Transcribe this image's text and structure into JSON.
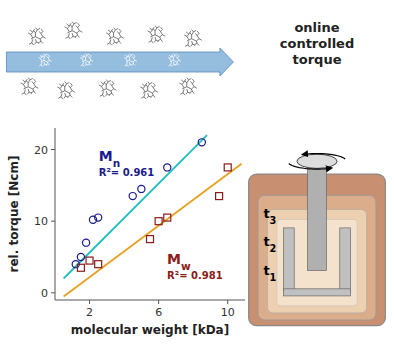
{
  "chart_data": {
    "type": "scatter",
    "xlabel": "molecular weight [kDa]",
    "ylabel": "rel. torque [Ncm]",
    "annotations": [
      "Mn",
      "R²= 0.961",
      "Mw",
      "R²= 0.981",
      "online\ncontrolled\ntorque",
      "t3",
      "t2",
      "t1"
    ],
    "series": [
      {
        "type": "line",
        "color": "#20C0C0",
        "line_style": "solid",
        "x": [
          0.5,
          8.8
        ],
        "values": [
          2.0,
          22.0
        ]
      },
      {
        "type": "line",
        "color": "#E8A020",
        "line_style": "solid",
        "x": [
          0.5,
          10.8
        ],
        "values": [
          -0.5,
          18.0
        ]
      },
      {
        "type": "scatter",
        "color": "#1a1a8c",
        "marker": "circle",
        "x": [
          1.2,
          1.5,
          1.8,
          2.2,
          2.5,
          4.5,
          5.0,
          6.5,
          8.5
        ],
        "values": [
          4.0,
          5.0,
          7.0,
          10.2,
          10.5,
          13.5,
          14.5,
          17.5,
          21.0
        ]
      },
      {
        "type": "scatter",
        "color": "#8B1A1A",
        "marker": "square",
        "x": [
          1.5,
          2.0,
          2.5,
          5.5,
          6.0,
          6.5,
          9.5,
          10.0
        ],
        "values": [
          3.5,
          4.5,
          4.0,
          7.5,
          10.0,
          10.5,
          13.5,
          17.5
        ]
      }
    ],
    "xlim": [
      0,
      11
    ],
    "ylim": [
      -1,
      23
    ],
    "xticks": [
      2,
      6,
      10
    ],
    "yticks": [
      0,
      10,
      20
    ],
    "grid": false
  }
}
